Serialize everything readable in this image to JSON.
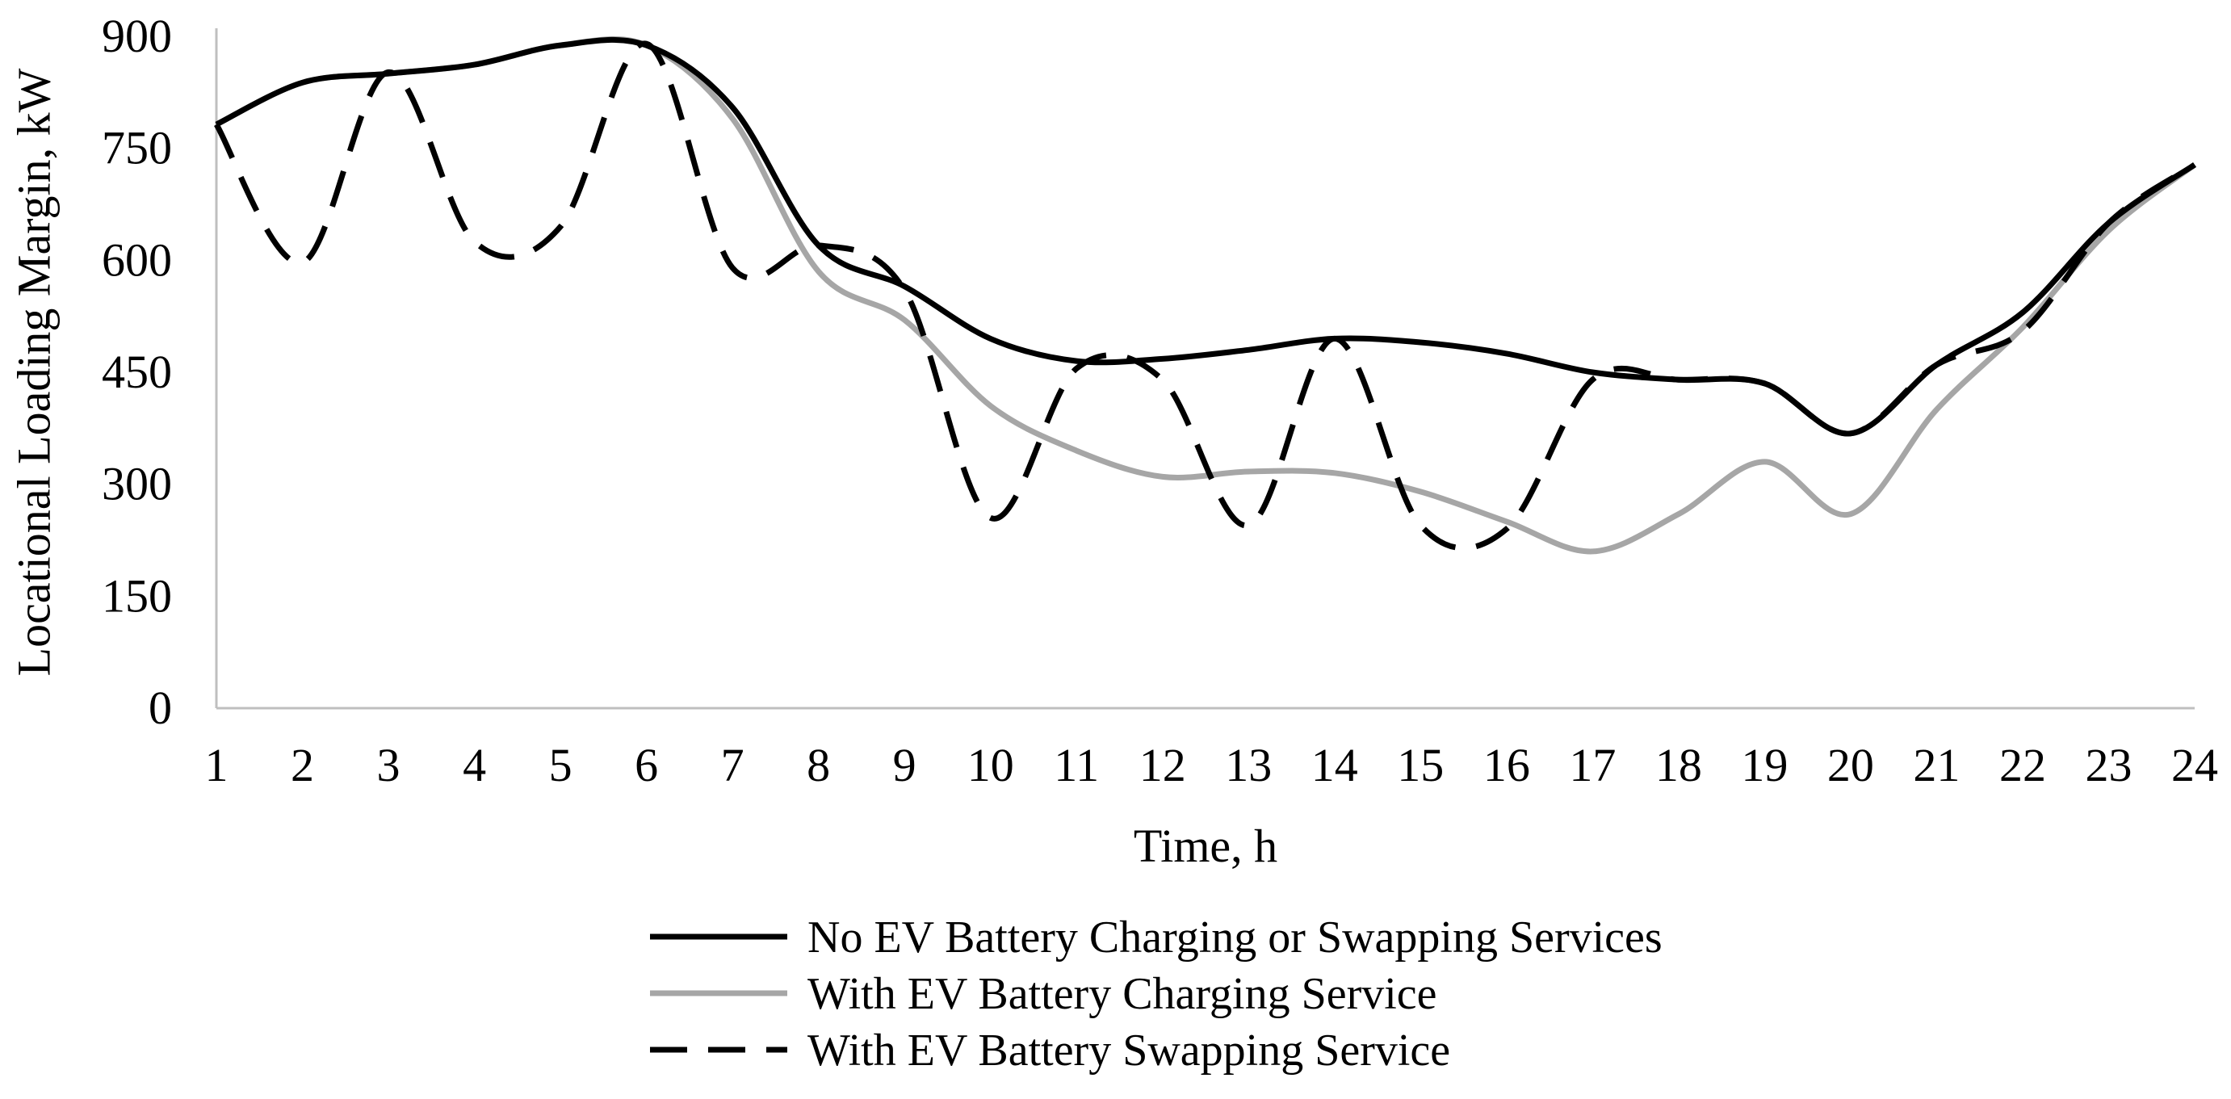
{
  "chart_data": {
    "type": "line",
    "title": "",
    "xlabel": "Time, h",
    "ylabel": "Locational Loading Margin, kW",
    "x": [
      1,
      2,
      3,
      4,
      5,
      6,
      7,
      8,
      9,
      10,
      11,
      12,
      13,
      14,
      15,
      16,
      17,
      18,
      19,
      20,
      21,
      22,
      23,
      24
    ],
    "xticks": [
      "1",
      "2",
      "3",
      "4",
      "5",
      "6",
      "7",
      "8",
      "9",
      "10",
      "11",
      "12",
      "13",
      "14",
      "15",
      "16",
      "17",
      "18",
      "19",
      "20",
      "21",
      "22",
      "23",
      "24"
    ],
    "ylim": [
      0,
      900
    ],
    "yticks": [
      0,
      150,
      300,
      450,
      600,
      750,
      900
    ],
    "grid": false,
    "legend_position": "bottom",
    "series": [
      {
        "name": "No EV Battery Charging or Swapping Services",
        "style": "solid",
        "color": "#000000",
        "values": [
          782,
          838,
          850,
          862,
          888,
          888,
          805,
          620,
          565,
          495,
          465,
          468,
          480,
          495,
          490,
          475,
          450,
          440,
          435,
          368,
          460,
          530,
          650,
          728
        ]
      },
      {
        "name": "With EV Battery Charging Service",
        "style": "solid",
        "color": "#a6a6a6",
        "values": [
          782,
          838,
          850,
          862,
          888,
          888,
          790,
          585,
          520,
          405,
          345,
          310,
          317,
          315,
          290,
          250,
          210,
          260,
          330,
          260,
          400,
          510,
          640,
          728
        ]
      },
      {
        "name": "With EV Battery Swapping Service",
        "style": "dashed",
        "color": "#000000",
        "values": [
          782,
          597,
          852,
          625,
          645,
          890,
          590,
          620,
          560,
          255,
          455,
          440,
          245,
          495,
          245,
          240,
          440,
          440,
          435,
          368,
          460,
          505,
          650,
          728
        ]
      }
    ]
  }
}
